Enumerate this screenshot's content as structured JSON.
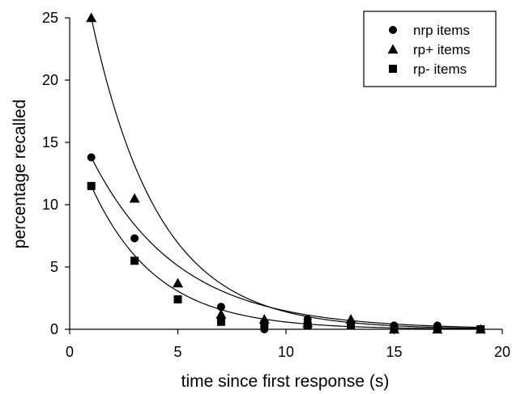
{
  "chart_data": {
    "type": "scatter",
    "title": "",
    "xlabel": "time since first response (s)",
    "ylabel": "percentage recalled",
    "xlim": [
      0,
      20
    ],
    "ylim": [
      0,
      25
    ],
    "xticks": [
      0,
      5,
      10,
      15,
      20
    ],
    "yticks": [
      0,
      5,
      10,
      15,
      20,
      25
    ],
    "grid": false,
    "legend_position": "top-right",
    "series": [
      {
        "name": "nrp items",
        "marker": "circle",
        "color": "#000000",
        "x": [
          1,
          3,
          5,
          7,
          9,
          11,
          13,
          15,
          17,
          19
        ],
        "values": [
          13.8,
          7.3,
          2.4,
          1.8,
          0.0,
          0.8,
          0.3,
          0.3,
          0.3,
          0.0
        ],
        "fit_curve": true
      },
      {
        "name": "rp+ items",
        "marker": "triangle",
        "color": "#000000",
        "x": [
          1,
          3,
          5,
          7,
          9,
          11,
          13,
          15,
          17,
          19
        ],
        "values": [
          25.0,
          10.5,
          3.7,
          1.2,
          0.8,
          0.5,
          0.8,
          0.0,
          0.0,
          0.0
        ],
        "fit_curve": true
      },
      {
        "name": "rp- items",
        "marker": "square",
        "color": "#000000",
        "x": [
          1,
          3,
          5,
          7,
          9,
          11,
          13,
          15,
          17,
          19
        ],
        "values": [
          11.5,
          5.5,
          2.4,
          0.6,
          0.4,
          0.3,
          0.3,
          0.0,
          0.0,
          0.0
        ],
        "fit_curve": true
      }
    ]
  }
}
